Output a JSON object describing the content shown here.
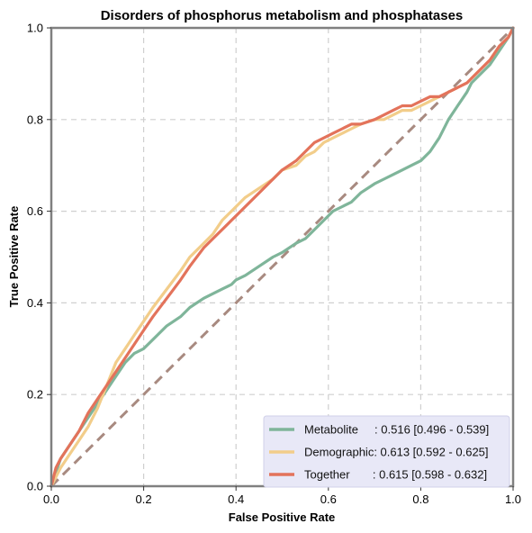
{
  "chart_data": {
    "type": "line",
    "title": "Disorders of phosphorus metabolism and phosphatases",
    "xlabel": "False Positive Rate",
    "ylabel": "True Positive Rate",
    "xlim": [
      0,
      1
    ],
    "ylim": [
      0,
      1
    ],
    "xticks": [
      "0.0",
      "0.2",
      "0.4",
      "0.6",
      "0.8",
      "1.0"
    ],
    "yticks": [
      "0.0",
      "0.2",
      "0.4",
      "0.6",
      "0.8",
      "1.0"
    ],
    "grid": true,
    "legend_position": "lower-right",
    "diagonal_color": "#a88a80",
    "series": [
      {
        "name": "Metabolite",
        "legend_text": "Metabolite     : 0.516 [0.496 - 0.539]",
        "color": "#7fb59a",
        "x": [
          0,
          0.01,
          0.02,
          0.04,
          0.06,
          0.08,
          0.1,
          0.12,
          0.14,
          0.16,
          0.18,
          0.2,
          0.22,
          0.25,
          0.28,
          0.3,
          0.33,
          0.35,
          0.37,
          0.39,
          0.4,
          0.42,
          0.45,
          0.48,
          0.5,
          0.53,
          0.55,
          0.57,
          0.59,
          0.61,
          0.63,
          0.65,
          0.67,
          0.7,
          0.72,
          0.74,
          0.76,
          0.78,
          0.8,
          0.82,
          0.84,
          0.86,
          0.88,
          0.9,
          0.91,
          0.93,
          0.95,
          0.97,
          0.99,
          1.0
        ],
        "y": [
          0,
          0.03,
          0.06,
          0.09,
          0.12,
          0.15,
          0.18,
          0.21,
          0.24,
          0.27,
          0.29,
          0.3,
          0.32,
          0.35,
          0.37,
          0.39,
          0.41,
          0.42,
          0.43,
          0.44,
          0.45,
          0.46,
          0.48,
          0.5,
          0.51,
          0.53,
          0.54,
          0.56,
          0.58,
          0.6,
          0.61,
          0.62,
          0.64,
          0.66,
          0.67,
          0.68,
          0.69,
          0.7,
          0.71,
          0.73,
          0.76,
          0.8,
          0.83,
          0.86,
          0.88,
          0.9,
          0.92,
          0.95,
          0.98,
          1.0
        ]
      },
      {
        "name": "Demographic",
        "legend_text": "Demographic: 0.613 [0.592 - 0.625]",
        "color": "#f2cd8a",
        "x": [
          0,
          0.01,
          0.02,
          0.04,
          0.06,
          0.08,
          0.1,
          0.12,
          0.14,
          0.16,
          0.18,
          0.2,
          0.22,
          0.25,
          0.28,
          0.3,
          0.33,
          0.35,
          0.37,
          0.39,
          0.4,
          0.42,
          0.45,
          0.48,
          0.5,
          0.53,
          0.55,
          0.57,
          0.59,
          0.61,
          0.63,
          0.65,
          0.67,
          0.7,
          0.72,
          0.74,
          0.76,
          0.78,
          0.8,
          0.82,
          0.84,
          0.86,
          0.88,
          0.9,
          0.91,
          0.93,
          0.95,
          0.97,
          0.99,
          1.0
        ],
        "y": [
          0,
          0.02,
          0.04,
          0.07,
          0.1,
          0.13,
          0.17,
          0.22,
          0.27,
          0.3,
          0.33,
          0.36,
          0.39,
          0.43,
          0.47,
          0.5,
          0.53,
          0.55,
          0.58,
          0.6,
          0.61,
          0.63,
          0.65,
          0.67,
          0.69,
          0.7,
          0.72,
          0.73,
          0.75,
          0.76,
          0.77,
          0.78,
          0.79,
          0.8,
          0.8,
          0.81,
          0.82,
          0.82,
          0.83,
          0.84,
          0.85,
          0.86,
          0.87,
          0.88,
          0.89,
          0.91,
          0.93,
          0.96,
          0.98,
          1.0
        ]
      },
      {
        "name": "Together",
        "legend_text": "Together       : 0.615 [0.598 - 0.632]",
        "color": "#e3735b",
        "x": [
          0,
          0.01,
          0.02,
          0.04,
          0.06,
          0.08,
          0.1,
          0.12,
          0.14,
          0.16,
          0.18,
          0.2,
          0.22,
          0.25,
          0.28,
          0.3,
          0.33,
          0.35,
          0.37,
          0.39,
          0.4,
          0.42,
          0.45,
          0.48,
          0.5,
          0.53,
          0.55,
          0.57,
          0.59,
          0.61,
          0.63,
          0.65,
          0.67,
          0.7,
          0.72,
          0.74,
          0.76,
          0.78,
          0.8,
          0.82,
          0.84,
          0.86,
          0.88,
          0.9,
          0.91,
          0.93,
          0.95,
          0.97,
          0.99,
          1.0
        ],
        "y": [
          0,
          0.04,
          0.06,
          0.09,
          0.12,
          0.16,
          0.19,
          0.22,
          0.25,
          0.28,
          0.31,
          0.34,
          0.37,
          0.41,
          0.45,
          0.48,
          0.52,
          0.54,
          0.56,
          0.58,
          0.59,
          0.61,
          0.64,
          0.67,
          0.69,
          0.71,
          0.73,
          0.75,
          0.76,
          0.77,
          0.78,
          0.79,
          0.79,
          0.8,
          0.81,
          0.82,
          0.83,
          0.83,
          0.84,
          0.85,
          0.85,
          0.86,
          0.87,
          0.88,
          0.89,
          0.91,
          0.93,
          0.96,
          0.98,
          1.0
        ]
      }
    ]
  }
}
